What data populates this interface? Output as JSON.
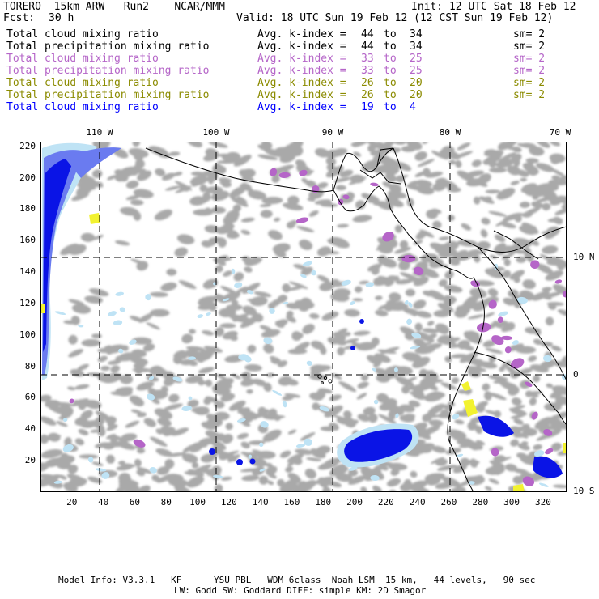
{
  "header": {
    "model_line": "TORERO  15km ARW   Run2    NCAR/MMM",
    "init_line": "Init: 12 UTC Sat 18 Feb 12",
    "fcst_label": "Fcst:",
    "fcst_value": "30 h",
    "valid_line": "Valid: 18 UTC Sun 19 Feb 12 (12 CST Sun 19 Feb 12)"
  },
  "legend": [
    {
      "label": "Total cloud mixing ratio",
      "index_label": "Avg. k-index =",
      "from": "44",
      "to_word": "to",
      "to": "34",
      "sm": "sm= 2",
      "color": "#000000"
    },
    {
      "label": "Total precipitation mixing ratio",
      "index_label": "Avg. k-index =",
      "from": "44",
      "to_word": "to",
      "to": "34",
      "sm": "sm= 2",
      "color": "#000000"
    },
    {
      "label": "Total cloud mixing ratio",
      "index_label": "Avg. k-index =",
      "from": "33",
      "to_word": "to",
      "to": "25",
      "sm": "sm= 2",
      "color": "#b565c8"
    },
    {
      "label": "Total precipitation mixing ratio",
      "index_label": "Avg. k-index =",
      "from": "33",
      "to_word": "to",
      "to": "25",
      "sm": "sm= 2",
      "color": "#b565c8"
    },
    {
      "label": "Total cloud mixing ratio",
      "index_label": "Avg. k-index =",
      "from": "26",
      "to_word": "to",
      "to": "20",
      "sm": "sm= 2",
      "color": "#8b8b00"
    },
    {
      "label": "Total precipitation mixing ratio",
      "index_label": "Avg. k-index =",
      "from": "26",
      "to_word": "to",
      "to": "20",
      "sm": "sm= 2",
      "color": "#8b8b00"
    },
    {
      "label": "Total cloud mixing ratio",
      "index_label": "Avg. k-index =",
      "from": "19",
      "to_word": "to",
      "to": "4",
      "sm": "",
      "color": "#0000ff"
    }
  ],
  "map": {
    "top_lon_labels": [
      "110 W",
      "100 W",
      "90 W",
      "80 W",
      "70 W"
    ],
    "right_lat_labels": [
      "10 N",
      "0",
      "10 S"
    ],
    "x_grid_ticks": [
      "20",
      "40",
      "60",
      "80",
      "100",
      "120",
      "140",
      "160",
      "180",
      "200",
      "220",
      "240",
      "260",
      "280",
      "300",
      "320"
    ],
    "y_grid_ticks": [
      "20",
      "40",
      "60",
      "80",
      "100",
      "120",
      "140",
      "160",
      "180",
      "200",
      "220"
    ],
    "x_range": [
      0,
      335
    ],
    "y_range": [
      0,
      223
    ],
    "colors": {
      "gray_cloud": "#a9a9a9",
      "light_blue": "#bfe3f5",
      "blue": "#0a14e6",
      "purple": "#b565c8",
      "yellow": "#f2f230",
      "coast": "#000000"
    }
  },
  "footer": {
    "line1": "Model Info: V3.3.1   KF      YSU PBL   WDM 6class  Noah LSM  15 km,   44 levels,   90 sec",
    "line2": "LW: Godd SW: Goddard DIFF: simple KM: 2D Smagor"
  }
}
